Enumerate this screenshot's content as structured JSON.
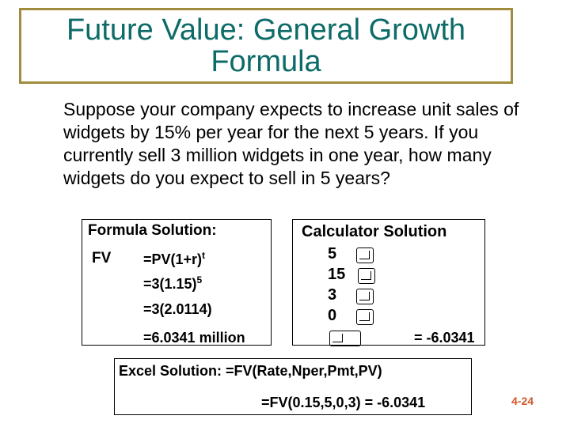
{
  "slide": {
    "title": "Future Value: General Growth Formula",
    "question": "Suppose your company expects to increase unit sales of widgets by 15% per year for the next 5 years. If you currently sell 3 million widgets in one year, how many widgets do you expect to sell in 5 years?",
    "slide_number": "4-24"
  },
  "formula": {
    "heading": "Formula Solution:",
    "label": "FV",
    "step1_base": "=PV(1+r)",
    "step1_exp": "t",
    "step2_base": "=3(1.15)",
    "step2_exp": "5",
    "step3": "=3(2.0114)",
    "step4": "=6.0341 million"
  },
  "calculator": {
    "heading": "Calculator Solution",
    "inputs": [
      "5",
      "15",
      "3",
      "0"
    ],
    "keys": [
      "n-key-icon",
      "i-key-icon",
      "pv-key-icon",
      "pmt-key-icon",
      "cpt-fv-key-icon"
    ],
    "result": "= -6.0341"
  },
  "excel": {
    "line1": "Excel Solution:  =FV(Rate,Nper,Pmt,PV)",
    "line2": "=FV(0.15,5,0,3) = -6.0341"
  }
}
